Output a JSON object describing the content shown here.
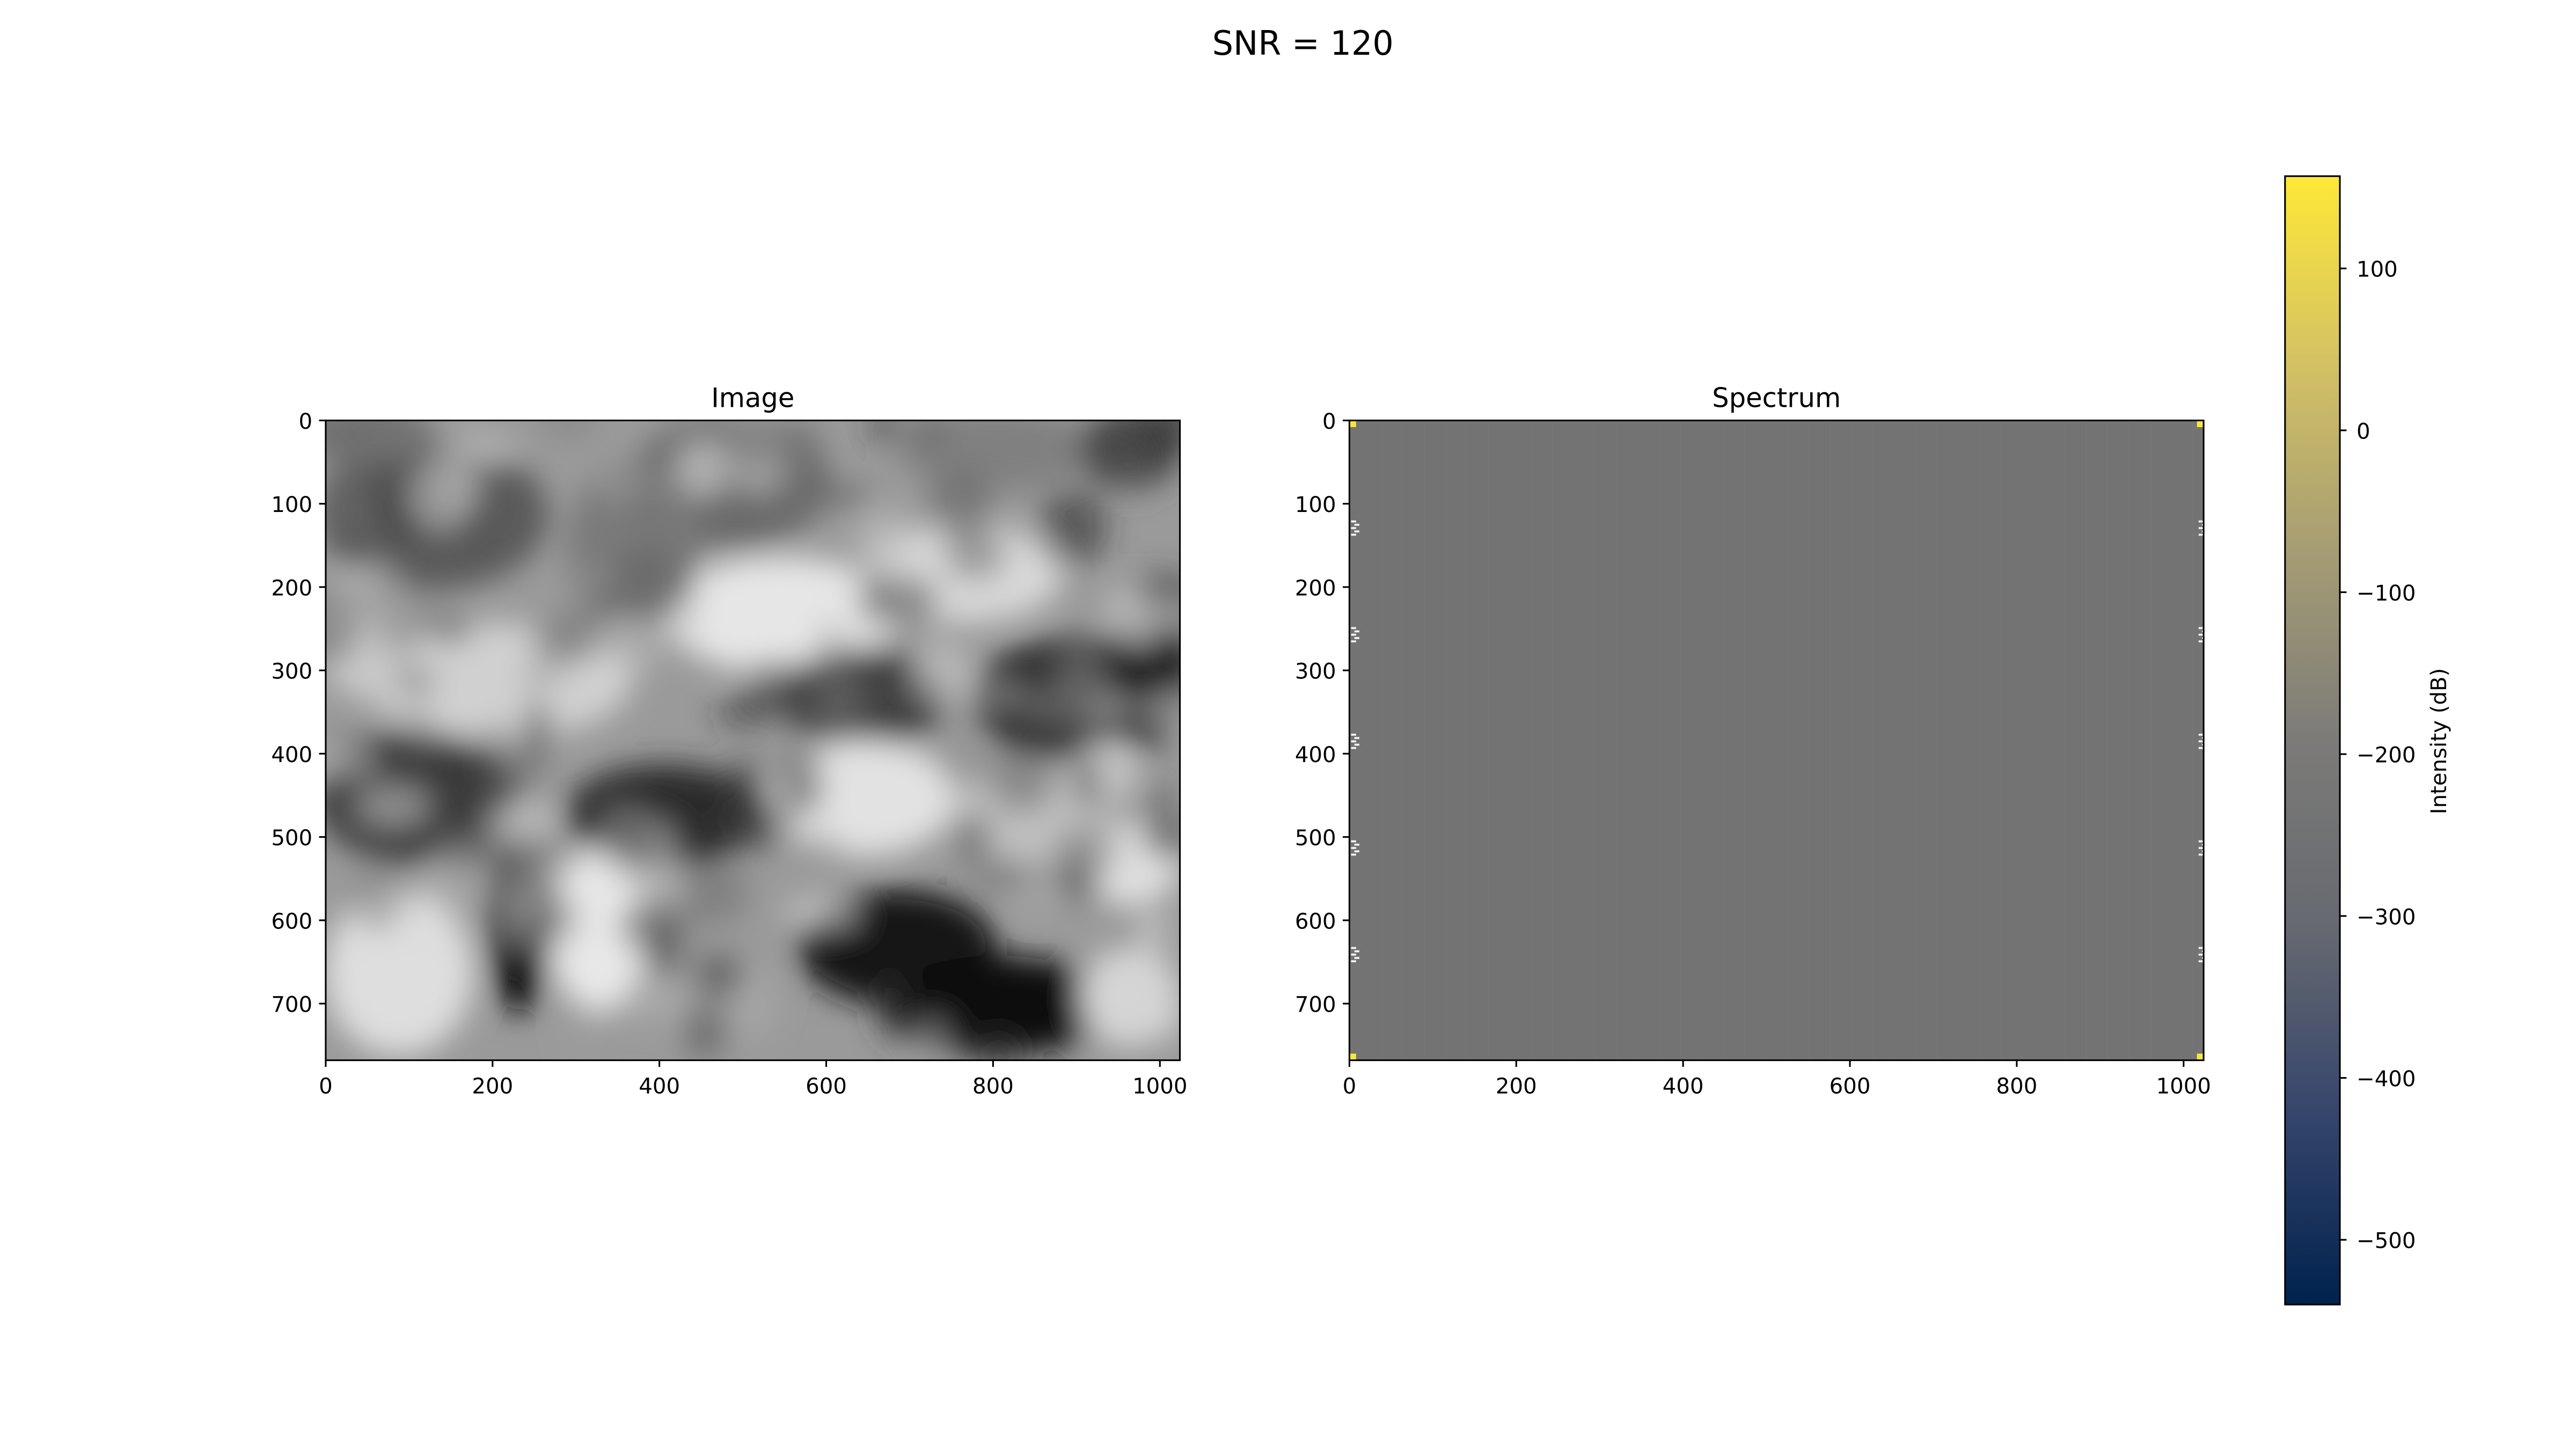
{
  "figure": {
    "suptitle": "SNR = 120"
  },
  "chart_data": [
    {
      "type": "heatmap",
      "title": "Image",
      "colormap": "gray",
      "xlabel": "",
      "ylabel": "",
      "xlim": [
        0,
        1024
      ],
      "ylim": [
        768,
        0
      ],
      "xticks": [
        0,
        200,
        400,
        600,
        800,
        1000
      ],
      "yticks": [
        0,
        100,
        200,
        300,
        400,
        500,
        600,
        700
      ],
      "xtick_labels": [
        "0",
        "200",
        "400",
        "600",
        "800",
        "1000"
      ],
      "ytick_labels": [
        "0",
        "100",
        "200",
        "300",
        "400",
        "500",
        "600",
        "700"
      ],
      "description_values": "blurred grayscale photograph"
    },
    {
      "type": "heatmap",
      "title": "Spectrum",
      "colormap": "cividis",
      "xlabel": "",
      "ylabel": "",
      "xlim": [
        0,
        1024
      ],
      "ylim": [
        768,
        0
      ],
      "xticks": [
        0,
        200,
        400,
        600,
        800,
        1000
      ],
      "yticks": [
        0,
        100,
        200,
        300,
        400,
        500,
        600,
        700
      ],
      "xtick_labels": [
        "0",
        "200",
        "400",
        "600",
        "800",
        "1000"
      ],
      "ytick_labels": [
        "0",
        "100",
        "200",
        "300",
        "400",
        "500",
        "600",
        "700"
      ],
      "background_value": -240,
      "bright_corner_color": "#fde737"
    }
  ],
  "colorbar": {
    "label": "Intensity (dB)",
    "colormap": "cividis",
    "range": [
      -540,
      157
    ],
    "ticks": [
      100,
      0,
      -100,
      -200,
      -300,
      -400,
      -500
    ],
    "tick_labels": [
      "100",
      "0",
      "−100",
      "−200",
      "−300",
      "−400",
      "−500"
    ],
    "color_stops": [
      "#00224e",
      "#35456c",
      "#666970",
      "#7c7b78",
      "#a59c74",
      "#d3c164",
      "#fee838"
    ]
  }
}
